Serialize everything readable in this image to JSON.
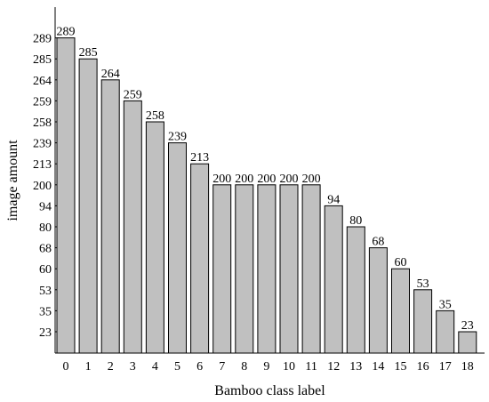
{
  "chart_data": {
    "type": "bar",
    "xlabel": "Bamboo class label",
    "ylabel": "image amount",
    "categories": [
      "0",
      "1",
      "2",
      "3",
      "4",
      "5",
      "6",
      "7",
      "8",
      "9",
      "10",
      "11",
      "12",
      "13",
      "14",
      "15",
      "16",
      "17",
      "18"
    ],
    "values": [
      289,
      285,
      264,
      259,
      258,
      239,
      213,
      200,
      200,
      200,
      200,
      200,
      94,
      80,
      68,
      60,
      53,
      35,
      23
    ],
    "y_tick_labels": [
      "23",
      "35",
      "53",
      "60",
      "68",
      "80",
      "94",
      "200",
      "213",
      "239",
      "258",
      "259",
      "264",
      "285",
      "289"
    ],
    "grid": false,
    "legend": "none",
    "colors": {
      "bar_fill": "#c0c0c0",
      "bar_stroke": "#000000",
      "axis": "#000000"
    }
  }
}
